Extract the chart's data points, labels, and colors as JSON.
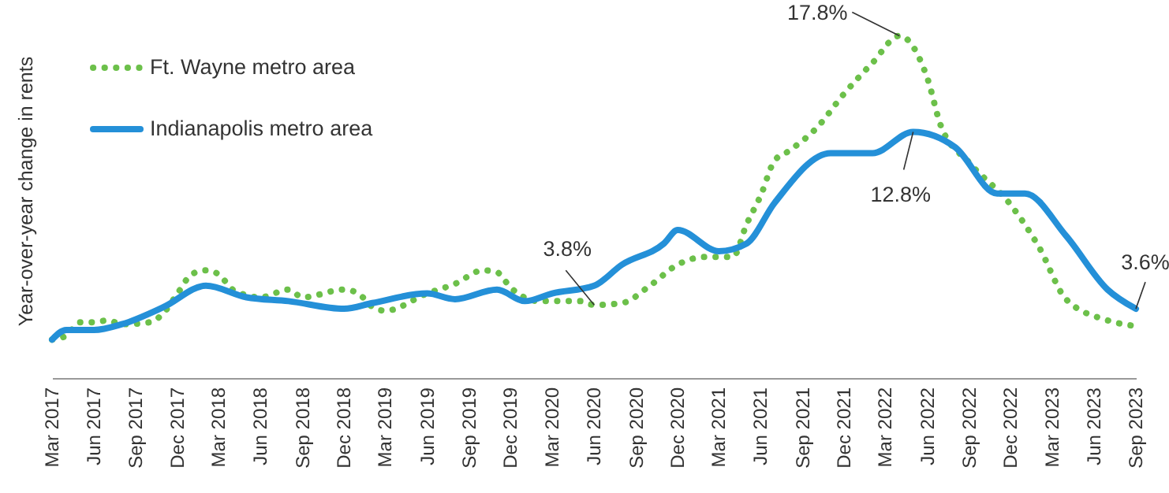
{
  "chart_data": {
    "type": "line",
    "ylabel": "Year-over-year change in rents",
    "xlim": [
      "2017-03",
      "2023-09"
    ],
    "ylim": [
      0,
      19.5
    ],
    "tick_labels": "x",
    "legend": "top left",
    "marker": "none",
    "grid": false,
    "xticks": [
      {
        "value": "2017-03",
        "label": "Mar 2017"
      },
      {
        "value": "2017-06",
        "label": "Jun 2017"
      },
      {
        "value": "2017-09",
        "label": "Sep 2017"
      },
      {
        "value": "2017-12",
        "label": "Dec 2017"
      },
      {
        "value": "2018-03",
        "label": "Mar 2018"
      },
      {
        "value": "2018-06",
        "label": "Jun 2018"
      },
      {
        "value": "2018-09",
        "label": "Sep 2018"
      },
      {
        "value": "2018-12",
        "label": "Dec 2018"
      },
      {
        "value": "2019-03",
        "label": "Mar 2019"
      },
      {
        "value": "2019-06",
        "label": "Jun 2019"
      },
      {
        "value": "2019-09",
        "label": "Sep 2019"
      },
      {
        "value": "2019-12",
        "label": "Dec 2019"
      },
      {
        "value": "2020-03",
        "label": "Mar 2020"
      },
      {
        "value": "2020-06",
        "label": "Jun 2020"
      },
      {
        "value": "2020-09",
        "label": "Sep 2020"
      },
      {
        "value": "2020-12",
        "label": "Dec 2020"
      },
      {
        "value": "2021-03",
        "label": "Mar 2021"
      },
      {
        "value": "2021-06",
        "label": "Jun 2021"
      },
      {
        "value": "2021-09",
        "label": "Sep 2021"
      },
      {
        "value": "2021-12",
        "label": "Dec 2021"
      },
      {
        "value": "2022-03",
        "label": "Mar 2022"
      },
      {
        "value": "2022-06",
        "label": "Jun 2022"
      },
      {
        "value": "2022-09",
        "label": "Sep 2022"
      },
      {
        "value": "2022-12",
        "label": "Dec 2022"
      },
      {
        "value": "2023-03",
        "label": "Mar 2023"
      },
      {
        "value": "2023-06",
        "label": "Jun 2023"
      },
      {
        "value": "2023-09",
        "label": "Sep 2023"
      }
    ],
    "series": [
      {
        "name": "Ft. Wayne metro area",
        "color": "#6cc04a",
        "line_style": "dotted",
        "x": [
          "2017-03",
          "2017-04",
          "2017-05",
          "2017-06",
          "2017-07",
          "2017-08",
          "2017-10",
          "2017-11",
          "2017-12",
          "2018-01",
          "2018-02",
          "2018-03",
          "2018-04",
          "2018-06",
          "2018-08",
          "2018-09",
          "2018-12",
          "2019-01",
          "2019-02",
          "2019-03",
          "2019-06",
          "2019-08",
          "2019-10",
          "2019-11",
          "2019-12",
          "2020-02",
          "2020-05",
          "2020-06",
          "2020-08",
          "2020-10",
          "2020-12",
          "2021-02",
          "2021-04",
          "2021-05",
          "2021-06",
          "2021-07",
          "2021-08",
          "2021-10",
          "2021-12",
          "2022-02",
          "2022-04",
          "2022-06",
          "2022-07",
          "2022-09",
          "2022-12",
          "2023-02",
          "2023-04",
          "2023-07",
          "2023-09"
        ],
        "values": [
          2.0,
          2.2,
          2.9,
          2.9,
          3.0,
          2.8,
          2.9,
          3.4,
          4.4,
          5.4,
          5.6,
          5.4,
          4.6,
          4.2,
          4.6,
          4.2,
          4.6,
          4.4,
          3.7,
          3.5,
          4.4,
          4.9,
          5.6,
          5.5,
          4.7,
          4.0,
          4.0,
          3.8,
          3.9,
          4.8,
          5.9,
          6.3,
          6.3,
          8.0,
          9.5,
          11.3,
          11.8,
          13.0,
          14.8,
          16.4,
          17.8,
          15.6,
          13.1,
          11.2,
          9.0,
          6.8,
          4.1,
          3.0,
          2.7
        ],
        "value_labels": [
          null,
          null,
          null,
          null,
          null,
          null,
          null,
          null,
          null,
          null,
          null,
          null,
          null,
          null,
          null,
          null,
          null,
          null,
          null,
          null,
          null,
          null,
          null,
          null,
          null,
          null,
          null,
          "3.8%",
          null,
          null,
          null,
          null,
          null,
          null,
          null,
          null,
          null,
          null,
          null,
          null,
          "17.8%",
          null,
          null,
          null,
          null,
          null,
          null,
          null,
          null
        ]
      },
      {
        "name": "Indianapolis metro area",
        "color": "#2490d8",
        "line_style": "solid",
        "x": [
          "2017-03",
          "2017-04",
          "2017-06",
          "2017-08",
          "2017-11",
          "2018-02",
          "2018-05",
          "2018-08",
          "2018-12",
          "2019-02",
          "2019-06",
          "2019-08",
          "2019-11",
          "2020-01",
          "2020-03",
          "2020-06",
          "2020-08",
          "2020-11",
          "2020-12",
          "2021-03",
          "2021-05",
          "2021-07",
          "2021-11",
          "2022-02",
          "2022-05",
          "2022-08",
          "2022-11",
          "2023-01",
          "2023-04",
          "2023-07",
          "2023-09"
        ],
        "values": [
          2.0,
          2.5,
          2.5,
          2.8,
          3.7,
          4.8,
          4.2,
          4.0,
          3.6,
          3.9,
          4.4,
          4.1,
          4.6,
          4.0,
          4.4,
          4.8,
          5.9,
          7.0,
          7.7,
          6.6,
          7.0,
          9.1,
          11.7,
          11.7,
          12.8,
          12.0,
          9.6,
          9.6,
          7.4,
          4.6,
          3.6
        ],
        "value_labels": [
          null,
          null,
          null,
          null,
          null,
          null,
          null,
          null,
          null,
          null,
          null,
          null,
          null,
          null,
          null,
          null,
          null,
          null,
          null,
          null,
          null,
          null,
          null,
          null,
          "12.8%",
          null,
          null,
          null,
          null,
          null,
          "3.6%"
        ]
      }
    ]
  }
}
